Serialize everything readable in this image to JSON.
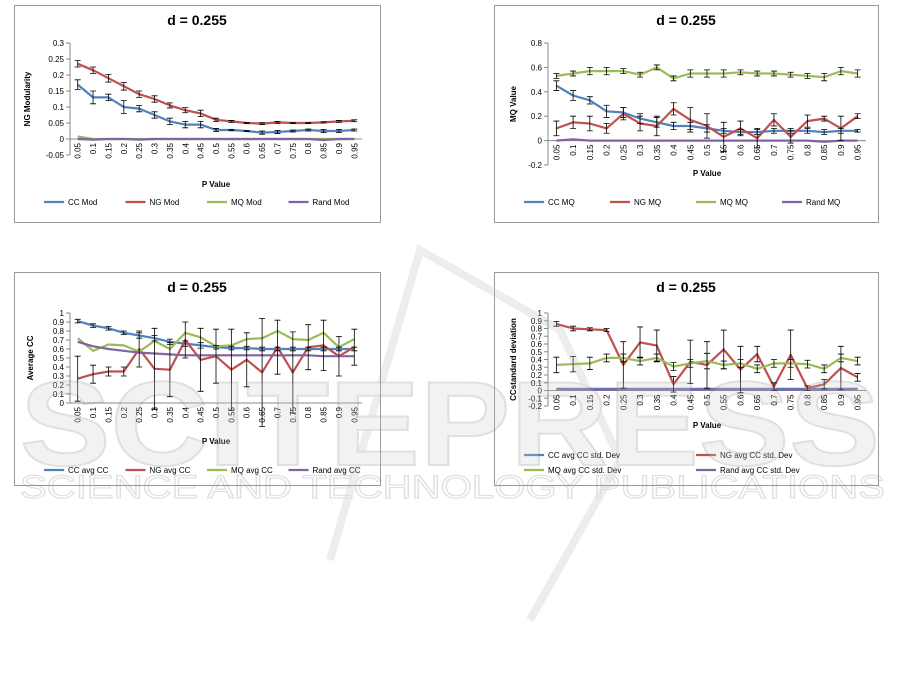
{
  "chart_data": [
    {
      "type": "line",
      "title": "d = 0.255",
      "x_label": "P Value",
      "y_label": "NG Modularity",
      "categories": [
        "0.05",
        "0.1",
        "0.15",
        "0.2",
        "0.25",
        "0.3",
        "0.35",
        "0.4",
        "0.45",
        "0.5",
        "0.55",
        "0.6",
        "0.65",
        "0.7",
        "0.75",
        "0.8",
        "0.85",
        "0.9",
        "0.95"
      ],
      "ylim": [
        -0.05,
        0.3
      ],
      "yticks": [
        -0.05,
        0,
        0.05,
        0.1,
        0.15,
        0.2,
        0.25,
        0.3
      ],
      "legend": "bottom",
      "series": [
        {
          "name": "CC Mod",
          "color": "#4f81bd",
          "values": [
            0.17,
            0.13,
            0.13,
            0.1,
            0.095,
            0.075,
            0.055,
            0.045,
            0.045,
            0.028,
            0.028,
            0.025,
            0.02,
            0.022,
            0.025,
            0.028,
            0.025,
            0.025,
            0.028
          ],
          "errors": [
            0.015,
            0.02,
            0.01,
            0.02,
            0.01,
            0.01,
            0.01,
            0.01,
            0.01,
            0.005,
            0.002,
            0.002,
            0.005,
            0.005,
            0.003,
            0.003,
            0.005,
            0.005,
            0.003
          ]
        },
        {
          "name": "NG Mod",
          "color": "#c0504d",
          "values": [
            0.235,
            0.215,
            0.19,
            0.165,
            0.14,
            0.125,
            0.105,
            0.09,
            0.08,
            0.06,
            0.055,
            0.05,
            0.048,
            0.052,
            0.05,
            0.05,
            0.052,
            0.055,
            0.057
          ],
          "errors": [
            0.01,
            0.01,
            0.012,
            0.012,
            0.01,
            0.01,
            0.008,
            0.008,
            0.01,
            0.005,
            0.003,
            0.002,
            0.003,
            0.003,
            0.002,
            0.002,
            0.002,
            0.003,
            0.003
          ]
        },
        {
          "name": "MQ Mod",
          "color": "#9bbb59",
          "values": [
            0.008,
            0,
            0,
            0,
            0,
            0,
            0,
            0,
            0,
            0,
            0,
            0,
            0,
            0,
            0,
            0,
            0,
            0,
            0
          ]
        },
        {
          "name": "Rand Mod",
          "color": "#8064a2",
          "values": [
            0,
            -0.002,
            0,
            0,
            -0.002,
            0,
            0,
            0,
            0,
            0,
            0,
            0,
            0,
            0,
            0,
            0,
            -0.003,
            0,
            0
          ]
        }
      ]
    },
    {
      "type": "line",
      "title": "d = 0.255",
      "x_label": "P Value",
      "y_label": "MQ Value",
      "categories": [
        "0.05",
        "0.1",
        "0.15",
        "0.2",
        "0.25",
        "0.3",
        "0.35",
        "0.4",
        "0.45",
        "0.5",
        "0.55",
        "0.6",
        "0.65",
        "0.7",
        "0.75",
        "0.8",
        "0.85",
        "0.9",
        "0.95"
      ],
      "ylim": [
        -0.2,
        0.8
      ],
      "yticks": [
        -0.2,
        0,
        0.2,
        0.4,
        0.6,
        0.8
      ],
      "legend": "bottom",
      "series": [
        {
          "name": "CC MQ",
          "color": "#4f81bd",
          "values": [
            0.45,
            0.37,
            0.33,
            0.24,
            0.23,
            0.18,
            0.15,
            0.12,
            0.12,
            0.1,
            0.08,
            0.07,
            0.07,
            0.08,
            0.08,
            0.08,
            0.07,
            0.08,
            0.08
          ],
          "errors": [
            0.04,
            0.04,
            0.03,
            0.05,
            0.04,
            0.04,
            0.04,
            0.03,
            0.03,
            0.03,
            0.02,
            0.02,
            0.02,
            0.02,
            0.02,
            0.02,
            0.02,
            0.02,
            0.01
          ]
        },
        {
          "name": "NG MQ",
          "color": "#c0504d",
          "values": [
            0.1,
            0.15,
            0.14,
            0.1,
            0.22,
            0.14,
            0.12,
            0.26,
            0.17,
            0.12,
            0.03,
            0.1,
            0.02,
            0.17,
            0.03,
            0.16,
            0.18,
            0.1,
            0.2
          ],
          "errors": [
            0.06,
            0.05,
            0.06,
            0.04,
            0.05,
            0.06,
            0.08,
            0.05,
            0.1,
            0.1,
            0.12,
            0.06,
            0.08,
            0.05,
            0.05,
            0.05,
            0.02,
            0.1,
            0.02
          ]
        },
        {
          "name": "MQ MQ",
          "color": "#9bbb59",
          "values": [
            0.53,
            0.55,
            0.57,
            0.57,
            0.57,
            0.54,
            0.6,
            0.51,
            0.55,
            0.55,
            0.55,
            0.56,
            0.55,
            0.55,
            0.54,
            0.53,
            0.52,
            0.57,
            0.55
          ],
          "errors": [
            0.02,
            0.02,
            0.03,
            0.03,
            0.02,
            0.02,
            0.02,
            0.02,
            0.03,
            0.03,
            0.03,
            0.02,
            0.02,
            0.02,
            0.02,
            0.02,
            0.03,
            0.03,
            0.03
          ]
        },
        {
          "name": "Rand MQ",
          "color": "#8064a2",
          "values": [
            0,
            0.01,
            0,
            0,
            0,
            0,
            0,
            0,
            0,
            0,
            0,
            0,
            0,
            0,
            0,
            0,
            -0.01,
            0,
            0
          ]
        }
      ]
    },
    {
      "type": "line",
      "title": "d = 0.255",
      "x_label": "P Value",
      "y_label": "Average CC",
      "categories": [
        "0.05",
        "0.1",
        "0.15",
        "0.2",
        "0.25",
        "0.3",
        "0.35",
        "0.4",
        "0.45",
        "0.5",
        "0.55",
        "0.6",
        "0.65",
        "0.7",
        "0.75",
        "0.8",
        "0.85",
        "0.9",
        "0.95"
      ],
      "ylim": [
        0,
        1
      ],
      "yticks": [
        0,
        0.1,
        0.2,
        0.3,
        0.4,
        0.5,
        0.6,
        0.7,
        0.8,
        0.9,
        1
      ],
      "legend": "bottom",
      "series": [
        {
          "name": "CC avg CC",
          "color": "#4f81bd",
          "values": [
            0.91,
            0.86,
            0.83,
            0.78,
            0.75,
            0.72,
            0.68,
            0.66,
            0.64,
            0.62,
            0.61,
            0.61,
            0.6,
            0.6,
            0.6,
            0.6,
            0.6,
            0.6,
            0.6
          ],
          "errors": [
            0.02,
            0.02,
            0.02,
            0.02,
            0.03,
            0.03,
            0.03,
            0.03,
            0.03,
            0.02,
            0.02,
            0.02,
            0.02,
            0.02,
            0.02,
            0.02,
            0.02,
            0.02,
            0.02
          ]
        },
        {
          "name": "NG avg CC",
          "color": "#c0504d",
          "values": [
            0.27,
            0.32,
            0.35,
            0.35,
            0.6,
            0.38,
            0.37,
            0.7,
            0.48,
            0.52,
            0.37,
            0.48,
            0.34,
            0.62,
            0.34,
            0.62,
            0.64,
            0.52,
            0.62
          ],
          "errors": [
            0.25,
            0.1,
            0.05,
            0.05,
            0.2,
            0.45,
            0.3,
            0.2,
            0.35,
            0.3,
            0.45,
            0.3,
            0.6,
            0.3,
            0.45,
            0.25,
            0.28,
            0.22,
            0.2
          ]
        },
        {
          "name": "MQ avg CC",
          "color": "#9bbb59",
          "values": [
            0.72,
            0.58,
            0.65,
            0.64,
            0.57,
            0.69,
            0.6,
            0.78,
            0.73,
            0.63,
            0.64,
            0.71,
            0.72,
            0.8,
            0.71,
            0.7,
            0.78,
            0.62,
            0.71
          ]
        },
        {
          "name": "Rand avg CC",
          "color": "#8064a2",
          "values": [
            0.68,
            0.63,
            0.6,
            0.58,
            0.56,
            0.55,
            0.54,
            0.53,
            0.53,
            0.53,
            0.53,
            0.53,
            0.53,
            0.53,
            0.53,
            0.53,
            0.52,
            0.52,
            0.52
          ]
        }
      ]
    },
    {
      "type": "line",
      "title": "d = 0.255",
      "x_label": "P Value",
      "y_label": "CCstandard deviation",
      "categories": [
        "0.05",
        "0.1",
        "0.15",
        "0.2",
        "0.25",
        "0.3",
        "0.35",
        "0.4",
        "0.45",
        "0.5",
        "0.55",
        "0.6",
        "0.65",
        "0.7",
        "0.75",
        "0.8",
        "0.85",
        "0.9",
        "0.95"
      ],
      "ylim": [
        -0.2,
        1
      ],
      "yticks": [
        -0.2,
        -0.1,
        0,
        0.1,
        0.2,
        0.3,
        0.4,
        0.5,
        0.6,
        0.7,
        0.8,
        0.9,
        1
      ],
      "legend": "bottom",
      "series": [
        {
          "name": "CC  avg CC std. Dev",
          "color": "#4f81bd",
          "values": [
            0.02,
            0.02,
            0.02,
            0.02,
            0.02,
            0.02,
            0.02,
            0.02,
            0.02,
            0.02,
            0.02,
            0.02,
            0.02,
            0.02,
            0.02,
            0.02,
            0.02,
            0.02,
            0.02
          ]
        },
        {
          "name": "NG  avg CC std. Dev",
          "color": "#c0504d",
          "values": [
            0.86,
            0.8,
            0.79,
            0.78,
            0.33,
            0.62,
            0.58,
            0.08,
            0.37,
            0.33,
            0.53,
            0.27,
            0.47,
            0.05,
            0.46,
            0.03,
            0.08,
            0.29,
            0.17
          ],
          "errors": [
            0.03,
            0.03,
            0.02,
            0.02,
            0.3,
            0.2,
            0.2,
            0.1,
            0.28,
            0.3,
            0.25,
            0.3,
            0.1,
            0.05,
            0.32,
            0.03,
            0.06,
            0.28,
            0.05
          ]
        },
        {
          "name": "MQ  avg CC std. Dev",
          "color": "#9bbb59",
          "values": [
            0.33,
            0.34,
            0.35,
            0.42,
            0.42,
            0.38,
            0.42,
            0.31,
            0.35,
            0.38,
            0.33,
            0.35,
            0.28,
            0.35,
            0.35,
            0.34,
            0.28,
            0.42,
            0.38
          ],
          "errors": [
            0.1,
            0.1,
            0.08,
            0.05,
            0.05,
            0.05,
            0.05,
            0.05,
            0.05,
            0.1,
            0.05,
            0.05,
            0.05,
            0.05,
            0.05,
            0.05,
            0.05,
            0.05,
            0.05
          ]
        },
        {
          "name": "Rand  avg CC std. Dev",
          "color": "#8064a2",
          "values": [
            0.02,
            0.01,
            0.01,
            0.01,
            0.01,
            0.01,
            0.01,
            0.01,
            0.01,
            0.01,
            0.01,
            0.01,
            0.01,
            0.01,
            0.01,
            0.01,
            0.01,
            0.01,
            0.02
          ]
        }
      ]
    }
  ],
  "watermark": {
    "name": "SCITEPRESS",
    "tagline": "SCIENCE AND TECHNOLOGY PUBLICATIONS"
  }
}
